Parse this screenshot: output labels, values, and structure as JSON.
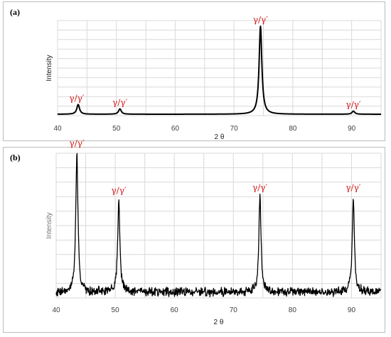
{
  "chart_data": [
    {
      "type": "line",
      "panel_label": "(a)",
      "xlabel": "2 θ",
      "ylabel": "Intensity",
      "xlim": [
        40,
        95
      ],
      "xticks": [
        40,
        50,
        60,
        70,
        80,
        90
      ],
      "grid": true,
      "line_color": "#000000",
      "peaks": [
        {
          "x": 43.5,
          "height": 0.11,
          "label": "γ/γ′"
        },
        {
          "x": 50.6,
          "height": 0.06,
          "label": "γ/γ′"
        },
        {
          "x": 74.5,
          "height": 1.0,
          "label": "γ/γ′"
        },
        {
          "x": 90.3,
          "height": 0.035,
          "label": "γ/γ′"
        }
      ]
    },
    {
      "type": "line",
      "panel_label": "(b)",
      "xlabel": "2 θ",
      "ylabel": "Intensity",
      "xlim": [
        40,
        95
      ],
      "xticks": [
        40,
        50,
        60,
        70,
        80,
        90
      ],
      "grid": true,
      "line_color": "#000000",
      "peaks": [
        {
          "x": 43.5,
          "height": 1.0,
          "label": "γ/γ′"
        },
        {
          "x": 50.6,
          "height": 0.66,
          "label": "γ/γ′"
        },
        {
          "x": 74.5,
          "height": 0.68,
          "label": "γ/γ′"
        },
        {
          "x": 90.3,
          "height": 0.68,
          "label": "γ/γ′"
        }
      ]
    }
  ],
  "label_color": "#d11919"
}
